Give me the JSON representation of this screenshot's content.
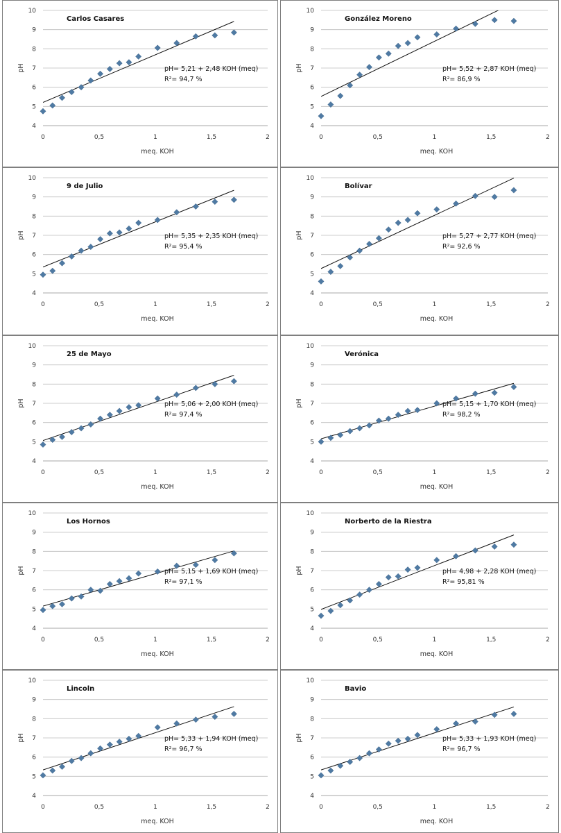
{
  "common": {
    "xlabel": "meq. KOH",
    "ylabel": "pH",
    "xlim": [
      0,
      2
    ],
    "ylim": [
      4,
      10
    ],
    "x_ticks": [
      "0",
      "0,5",
      "1",
      "1,5",
      "2"
    ],
    "y_ticks": [
      "4",
      "5",
      "6",
      "7",
      "8",
      "9",
      "10"
    ]
  },
  "colors": {
    "marker": "#4f7aa3",
    "fit_line": "#111111",
    "grid": "#bdbdbd",
    "panel_border": "#7f7f7f"
  },
  "chart_data": [
    {
      "type": "scatter",
      "title": "Carlos Casares",
      "xlabel": "meq. KOH",
      "ylabel": "pH",
      "xlim": [
        0,
        2
      ],
      "ylim": [
        4,
        10
      ],
      "equation": "pH= 5,21 + 2,48 KOH (meq)",
      "r2": "R²= 94,7 %",
      "fit": {
        "intercept": 5.21,
        "slope": 2.48
      },
      "x": [
        0,
        0.085,
        0.17,
        0.255,
        0.34,
        0.425,
        0.51,
        0.595,
        0.68,
        0.765,
        0.85,
        1.02,
        1.19,
        1.36,
        1.53,
        1.7
      ],
      "y": [
        4.75,
        5.05,
        5.45,
        5.75,
        6.0,
        6.35,
        6.7,
        6.95,
        7.25,
        7.3,
        7.6,
        8.05,
        8.3,
        8.65,
        8.7,
        8.85
      ]
    },
    {
      "type": "scatter",
      "title": "González Moreno",
      "xlabel": "meq. KOH",
      "ylabel": "pH",
      "xlim": [
        0,
        2
      ],
      "ylim": [
        4,
        10
      ],
      "equation": "pH= 5,52 + 2,87 KOH (meq)",
      "r2": "R²= 86,9 %",
      "fit": {
        "intercept": 5.52,
        "slope": 2.87
      },
      "x": [
        0,
        0.085,
        0.17,
        0.255,
        0.34,
        0.425,
        0.51,
        0.595,
        0.68,
        0.765,
        0.85,
        1.02,
        1.19,
        1.36,
        1.53,
        1.7
      ],
      "y": [
        4.5,
        5.1,
        5.55,
        6.1,
        6.65,
        7.05,
        7.55,
        7.75,
        8.15,
        8.3,
        8.6,
        8.75,
        9.05,
        9.3,
        9.5,
        9.45
      ]
    },
    {
      "type": "scatter",
      "title": "9 de Julio",
      "xlabel": "meq. KOH",
      "ylabel": "pH",
      "xlim": [
        0,
        2
      ],
      "ylim": [
        4,
        10
      ],
      "equation": "pH= 5,35 + 2,35 KOH (meq)",
      "r2": "R²= 95,4 %",
      "fit": {
        "intercept": 5.35,
        "slope": 2.35
      },
      "x": [
        0,
        0.085,
        0.17,
        0.255,
        0.34,
        0.425,
        0.51,
        0.595,
        0.68,
        0.765,
        0.85,
        1.02,
        1.19,
        1.36,
        1.53,
        1.7
      ],
      "y": [
        4.95,
        5.15,
        5.55,
        5.9,
        6.2,
        6.4,
        6.8,
        7.1,
        7.15,
        7.35,
        7.65,
        7.8,
        8.2,
        8.5,
        8.75,
        8.85
      ]
    },
    {
      "type": "scatter",
      "title": "Bolívar",
      "xlabel": "meq. KOH",
      "ylabel": "pH",
      "xlim": [
        0,
        2
      ],
      "ylim": [
        4,
        10
      ],
      "equation": "pH= 5,27 + 2,77 KOH (meq)",
      "r2": "R²= 92,6 %",
      "fit": {
        "intercept": 5.27,
        "slope": 2.77
      },
      "x": [
        0,
        0.085,
        0.17,
        0.255,
        0.34,
        0.425,
        0.51,
        0.595,
        0.68,
        0.765,
        0.85,
        1.02,
        1.19,
        1.36,
        1.53,
        1.7
      ],
      "y": [
        4.6,
        5.1,
        5.4,
        5.85,
        6.2,
        6.55,
        6.85,
        7.3,
        7.65,
        7.8,
        8.15,
        8.35,
        8.65,
        9.05,
        9.0,
        9.35
      ]
    },
    {
      "type": "scatter",
      "title": "25 de Mayo",
      "xlabel": "meq. KOH",
      "ylabel": "pH",
      "xlim": [
        0,
        2
      ],
      "ylim": [
        4,
        10
      ],
      "equation": "pH= 5,06 + 2,00 KOH (meq)",
      "r2": "R²= 97,4 %",
      "fit": {
        "intercept": 5.06,
        "slope": 2.0
      },
      "x": [
        0,
        0.085,
        0.17,
        0.255,
        0.34,
        0.425,
        0.51,
        0.595,
        0.68,
        0.765,
        0.85,
        1.02,
        1.19,
        1.36,
        1.53,
        1.7
      ],
      "y": [
        4.85,
        5.1,
        5.25,
        5.5,
        5.7,
        5.9,
        6.2,
        6.4,
        6.6,
        6.8,
        6.9,
        7.25,
        7.45,
        7.8,
        8.0,
        8.15
      ]
    },
    {
      "type": "scatter",
      "title": "Verónica",
      "xlabel": "meq. KOH",
      "ylabel": "pH",
      "xlim": [
        0,
        2
      ],
      "ylim": [
        4,
        10
      ],
      "equation": "pH= 5,15 + 1,70 KOH (meq)",
      "r2": "R²= 98,2 %",
      "fit": {
        "intercept": 5.15,
        "slope": 1.7
      },
      "x": [
        0,
        0.085,
        0.17,
        0.255,
        0.34,
        0.425,
        0.51,
        0.595,
        0.68,
        0.765,
        0.85,
        1.02,
        1.19,
        1.36,
        1.53,
        1.7
      ],
      "y": [
        5.0,
        5.2,
        5.35,
        5.55,
        5.7,
        5.85,
        6.1,
        6.2,
        6.4,
        6.6,
        6.65,
        7.0,
        7.25,
        7.5,
        7.55,
        7.85
      ]
    },
    {
      "type": "scatter",
      "title": "Los Hornos",
      "xlabel": "meq. KOH",
      "ylabel": "pH",
      "xlim": [
        0,
        2
      ],
      "ylim": [
        4,
        10
      ],
      "equation": "pH= 5,15 + 1,69 KOH (meq)",
      "r2": "R²= 97,1 %",
      "fit": {
        "intercept": 5.15,
        "slope": 1.69
      },
      "x": [
        0,
        0.085,
        0.17,
        0.255,
        0.34,
        0.425,
        0.51,
        0.595,
        0.68,
        0.765,
        0.85,
        1.02,
        1.19,
        1.36,
        1.53,
        1.7
      ],
      "y": [
        4.95,
        5.15,
        5.25,
        5.55,
        5.65,
        6.0,
        5.95,
        6.3,
        6.45,
        6.6,
        6.85,
        6.95,
        7.25,
        7.3,
        7.55,
        7.9
      ]
    },
    {
      "type": "scatter",
      "title": "Norberto de la Riestra",
      "xlabel": "meq. KOH",
      "ylabel": "pH",
      "xlim": [
        0,
        2
      ],
      "ylim": [
        4,
        10
      ],
      "equation": "pH= 4,98 + 2,28 KOH (meq)",
      "r2": "R²= 95,81 %",
      "fit": {
        "intercept": 4.98,
        "slope": 2.28
      },
      "x": [
        0,
        0.085,
        0.17,
        0.255,
        0.34,
        0.425,
        0.51,
        0.595,
        0.68,
        0.765,
        0.85,
        1.02,
        1.19,
        1.36,
        1.53,
        1.7
      ],
      "y": [
        4.65,
        4.9,
        5.2,
        5.45,
        5.75,
        6.0,
        6.3,
        6.65,
        6.7,
        7.05,
        7.15,
        7.55,
        7.75,
        8.05,
        8.25,
        8.35
      ]
    },
    {
      "type": "scatter",
      "title": "Lincoln",
      "xlabel": "meq. KOH",
      "ylabel": "pH",
      "xlim": [
        0,
        2
      ],
      "ylim": [
        4,
        10
      ],
      "equation": "pH= 5,33 + 1,94 KOH (meq)",
      "r2": "R²= 96,7 %",
      "fit": {
        "intercept": 5.33,
        "slope": 1.94
      },
      "x": [
        0,
        0.085,
        0.17,
        0.255,
        0.34,
        0.425,
        0.51,
        0.595,
        0.68,
        0.765,
        0.85,
        1.02,
        1.19,
        1.36,
        1.53,
        1.7
      ],
      "y": [
        5.05,
        5.3,
        5.5,
        5.8,
        5.95,
        6.2,
        6.45,
        6.65,
        6.8,
        6.95,
        7.1,
        7.55,
        7.75,
        7.95,
        8.1,
        8.25
      ]
    },
    {
      "type": "scatter",
      "title": "Bavio",
      "xlabel": "meq. KOH",
      "ylabel": "pH",
      "xlim": [
        0,
        2
      ],
      "ylim": [
        4,
        10
      ],
      "equation": "pH= 5,33 + 1,93 KOH (meq)",
      "r2": "R²= 96,7 %",
      "fit": {
        "intercept": 5.33,
        "slope": 1.93
      },
      "x": [
        0,
        0.085,
        0.17,
        0.255,
        0.34,
        0.425,
        0.51,
        0.595,
        0.68,
        0.765,
        0.85,
        1.02,
        1.19,
        1.36,
        1.53,
        1.7
      ],
      "y": [
        5.05,
        5.3,
        5.55,
        5.75,
        5.95,
        6.2,
        6.4,
        6.7,
        6.85,
        6.95,
        7.15,
        7.45,
        7.75,
        7.85,
        8.2,
        8.25
      ]
    }
  ]
}
